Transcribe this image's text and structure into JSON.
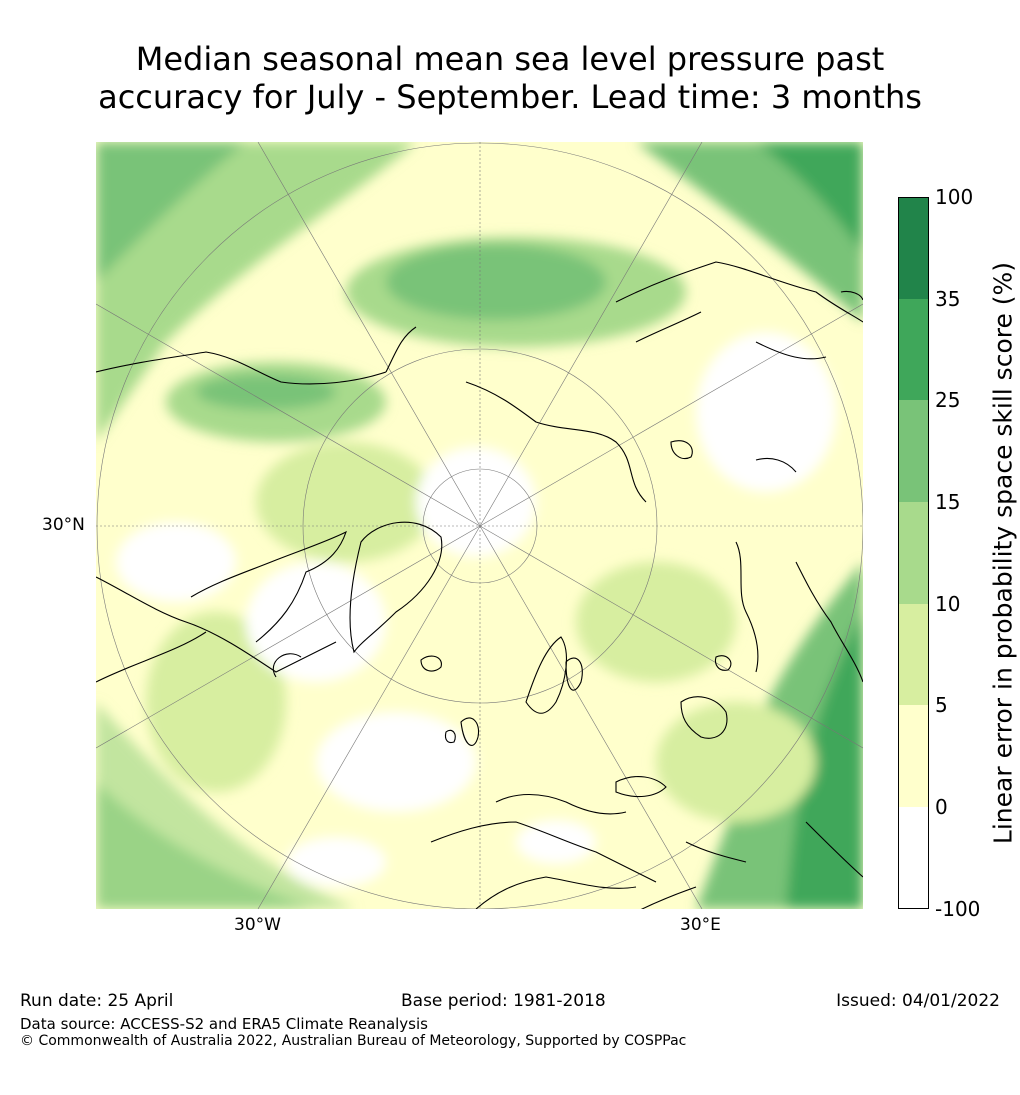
{
  "title": {
    "line1": "Median seasonal mean sea level pressure past",
    "line2": "accuracy for July - September. Lead time: 3 months"
  },
  "map": {
    "lat_label": "30°N",
    "lon_labels": [
      "30°W",
      "30°E"
    ]
  },
  "colorbar": {
    "title": "Linear error in probability space skill score (%)",
    "labels": [
      "100",
      "35",
      "25",
      "15",
      "10",
      "5",
      "0",
      "-100"
    ],
    "colors": [
      "#21844a",
      "#3fa75a",
      "#79c378",
      "#a8da8c",
      "#d7eea0",
      "#ffffcc",
      "#ffffff"
    ]
  },
  "footer": {
    "run_date": "Run date: 25 April",
    "base_period": "Base period: 1981-2018",
    "issued": "Issued: 04/01/2022",
    "data_source": "Data source: ACCESS-S2 and ERA5 Climate Reanalysis",
    "copyright": "© Commonwealth of Australia 2022, Australian Bureau of Meteorology, Supported by COSPPac"
  }
}
